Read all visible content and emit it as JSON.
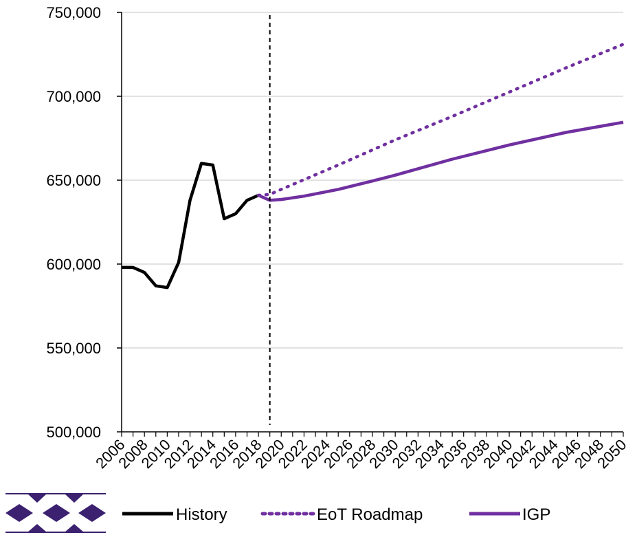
{
  "chart_data": {
    "type": "line",
    "title": "",
    "xlabel": "",
    "ylabel": "",
    "xlim": [
      2006,
      2050
    ],
    "ylim": [
      500000,
      750000
    ],
    "yticks": [
      500000,
      550000,
      600000,
      650000,
      700000,
      750000
    ],
    "ytick_labels": [
      "500,000",
      "550,000",
      "600,000",
      "650,000",
      "700,000",
      "750,000"
    ],
    "xticks": [
      2006,
      2008,
      2010,
      2012,
      2014,
      2016,
      2018,
      2020,
      2022,
      2024,
      2026,
      2028,
      2030,
      2032,
      2034,
      2036,
      2038,
      2040,
      2042,
      2044,
      2046,
      2048,
      2050
    ],
    "xtick_labels": [
      "2006",
      "2008",
      "2010",
      "2012",
      "2014",
      "2016",
      "2018",
      "2020",
      "2022",
      "2024",
      "2026",
      "2028",
      "2030",
      "2032",
      "2034",
      "2036",
      "2038",
      "2040",
      "2042",
      "2044",
      "2046",
      "2048",
      "2050"
    ],
    "grid": "horizontal",
    "reference_line_x": 2019,
    "legend_position": "bottom",
    "series": [
      {
        "name": "History",
        "color": "#000000",
        "style": "solid",
        "x": [
          2006,
          2007,
          2008,
          2009,
          2010,
          2011,
          2012,
          2013,
          2014,
          2015,
          2016,
          2017,
          2018
        ],
        "y": [
          598000,
          598000,
          595000,
          587000,
          586000,
          601000,
          638000,
          660000,
          659000,
          627000,
          630000,
          638000,
          641000
        ]
      },
      {
        "name": "EoT Roadmap",
        "color": "#7030A0",
        "style": "dotted",
        "x": [
          2018,
          2019,
          2020,
          2025,
          2030,
          2035,
          2040,
          2045,
          2050
        ],
        "y": [
          641000,
          641500,
          644500,
          659000,
          674000,
          688000,
          702500,
          717000,
          731000
        ]
      },
      {
        "name": "IGP",
        "color": "#7030A0",
        "style": "solid",
        "x": [
          2018,
          2019,
          2020,
          2022,
          2025,
          2028,
          2030,
          2035,
          2040,
          2045,
          2050
        ],
        "y": [
          641000,
          638000,
          638500,
          640500,
          644500,
          649500,
          653000,
          662500,
          671000,
          678500,
          684500
        ]
      }
    ]
  },
  "logo": {
    "name": "diamond-pattern-logo",
    "color": "#3b2170"
  }
}
